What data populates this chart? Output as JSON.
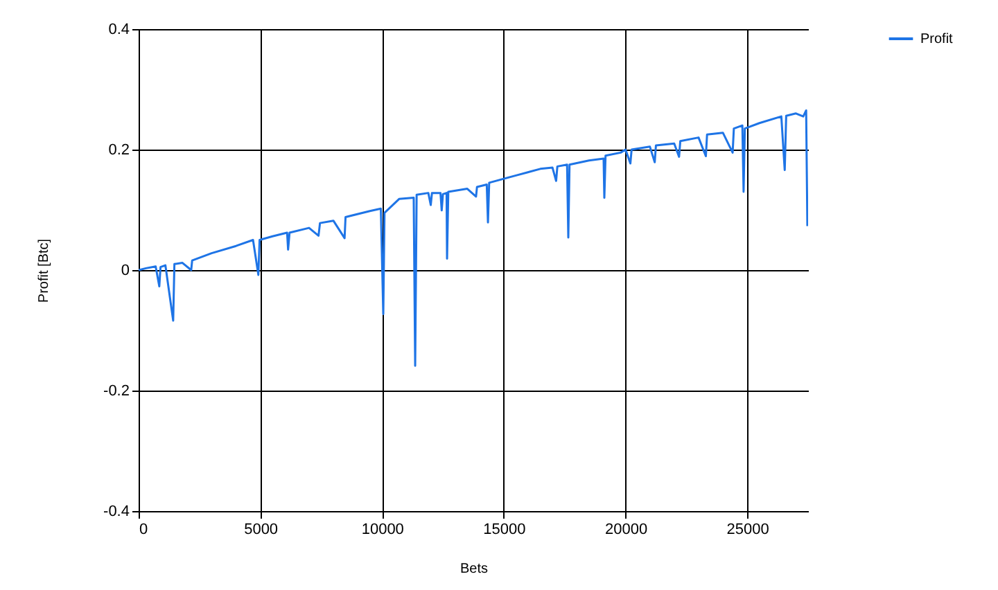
{
  "chart_data": {
    "type": "line",
    "xlabel": "Bets",
    "ylabel": "Profit [Btc]",
    "xlim": [
      0,
      27500
    ],
    "ylim": [
      -0.4,
      0.4
    ],
    "xticks": [
      0,
      5000,
      10000,
      15000,
      20000,
      25000
    ],
    "yticks": [
      -0.4,
      -0.2,
      0,
      0.2,
      0.4
    ],
    "grid": true,
    "legend": "top right",
    "x": [
      0,
      300,
      700,
      850,
      900,
      1100,
      1420,
      1470,
      1800,
      2160,
      2200,
      3000,
      4000,
      4700,
      4920,
      4970,
      5500,
      6100,
      6140,
      6200,
      7000,
      7390,
      7450,
      8000,
      8460,
      8500,
      9500,
      9950,
      10050,
      10100,
      10700,
      11300,
      11360,
      11420,
      11900,
      12000,
      12050,
      12400,
      12450,
      12500,
      12650,
      12670,
      12720,
      13500,
      13860,
      13900,
      14300,
      14350,
      14400,
      15500,
      16500,
      17000,
      17150,
      17200,
      17600,
      17650,
      17700,
      18500,
      19100,
      19130,
      19180,
      19800,
      20000,
      20200,
      20250,
      21000,
      21200,
      21250,
      22000,
      22200,
      22250,
      23000,
      23300,
      23350,
      24000,
      24400,
      24450,
      24800,
      24850,
      24900,
      25500,
      26400,
      26540,
      26600,
      27000,
      27300,
      27420,
      27470
    ],
    "series": [
      {
        "name": "Profit",
        "color": "#1e74e6",
        "values": [
          0,
          0.003,
          0.006,
          -0.027,
          0.005,
          0.008,
          -0.084,
          0.01,
          0.012,
          0.0,
          0.016,
          0.028,
          0.04,
          0.05,
          -0.008,
          0.05,
          0.056,
          0.062,
          0.034,
          0.062,
          0.07,
          0.057,
          0.078,
          0.082,
          0.053,
          0.088,
          0.098,
          0.102,
          -0.073,
          0.095,
          0.118,
          0.12,
          -0.159,
          0.125,
          0.128,
          0.108,
          0.128,
          0.128,
          0.099,
          0.126,
          0.128,
          0.019,
          0.13,
          0.135,
          0.122,
          0.138,
          0.142,
          0.079,
          0.145,
          0.157,
          0.168,
          0.17,
          0.148,
          0.172,
          0.175,
          0.054,
          0.175,
          0.182,
          0.185,
          0.12,
          0.19,
          0.195,
          0.2,
          0.177,
          0.2,
          0.205,
          0.179,
          0.207,
          0.21,
          0.188,
          0.214,
          0.22,
          0.189,
          0.225,
          0.228,
          0.195,
          0.235,
          0.24,
          0.13,
          0.235,
          0.244,
          0.255,
          0.166,
          0.256,
          0.26,
          0.255,
          0.265,
          0.073
        ]
      }
    ]
  }
}
